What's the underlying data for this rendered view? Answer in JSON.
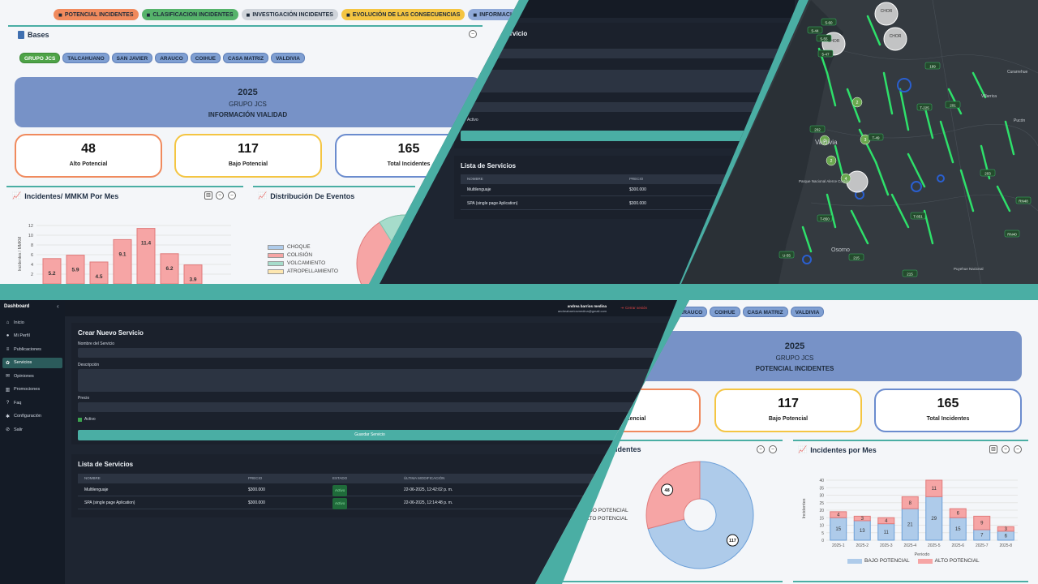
{
  "colors": {
    "teal": "#4aaea4",
    "vial_banner": "#7792c7",
    "alto": "#f6a5a5",
    "bajo": "#aecbea",
    "green_chip": "#4ea347"
  },
  "vialidad": {
    "tabs": [
      {
        "label": "POTENCIAL INCIDENTES",
        "icon": "truck-icon",
        "color": "#f08a5d"
      },
      {
        "label": "CLASIFICACION INCIDENTES",
        "icon": "pie-icon",
        "color": "#56b36b"
      },
      {
        "label": "INVESTIGACIÓN INCIDENTES",
        "icon": "detective-icon",
        "color": "#cfd4da"
      },
      {
        "label": "EVOLUCIÓN DE LAS CONSECUENCIAS",
        "icon": "table-icon",
        "color": "#f4c542"
      },
      {
        "label": "INFORMACIÓN VIALIDAD",
        "icon": "chart-line-icon",
        "color": "#8fa9d8"
      }
    ],
    "bases_title": "Bases",
    "chips": [
      "GRUPO JCS",
      "TALCAHUANO",
      "SAN JAVIER",
      "ARAUCO",
      "COIHUE",
      "CASA MATRIZ",
      "VALDIVIA"
    ],
    "year": "2025",
    "group": "GRUPO JCS",
    "subtitle": "INFORMACIÓN VIALIDAD",
    "kpis": [
      {
        "value": "48",
        "label": "Alto Potencial",
        "color": "#f08a5d"
      },
      {
        "value": "117",
        "label": "Bajo Potencial",
        "color": "#f4c542"
      },
      {
        "value": "165",
        "label": "Total Incidentes",
        "color": "#6b8cce"
      }
    ],
    "chart1_title": "Incidentes/ MMKM Por Mes",
    "chart1_ylabel": "Incidentes / MMKM",
    "chart2_title": "Distribución De Eventos",
    "legend": [
      {
        "label": "CHOQUE",
        "color": "#aecbea"
      },
      {
        "label": "COLISIÓN",
        "color": "#f6a5a5"
      },
      {
        "label": "VOLCAMIENTO",
        "color": "#a6dccb"
      },
      {
        "label": "ATROPELLAMIENTO",
        "color": "#fde7b0"
      }
    ]
  },
  "chart_data": [
    {
      "type": "bar",
      "title": "Incidentes/ MMKM Por Mes",
      "ylabel": "Incidentes / MMKM",
      "ylim": [
        0,
        12
      ],
      "yticks": [
        2,
        4,
        6,
        8,
        10,
        12
      ],
      "values": [
        5.2,
        5.9,
        4.5,
        9.1,
        11.4,
        6.2,
        3.9
      ]
    },
    {
      "type": "pie",
      "title": "Incidentes",
      "labels": [
        "BAJO POTENCIAL",
        "ALTO POTENCIAL"
      ],
      "values": [
        117,
        48
      ]
    },
    {
      "type": "bar",
      "title": "Incidentes por Mes",
      "xlabel": "Periodo",
      "ylabel": "Incidentes",
      "ylim": [
        0,
        40
      ],
      "yticks": [
        0,
        5,
        10,
        15,
        20,
        25,
        30,
        35,
        40
      ],
      "categories": [
        "2025-1",
        "2025-2",
        "2025-3",
        "2025-4",
        "2025-5",
        "2025-6",
        "2025-7",
        "2025-8"
      ],
      "series": [
        {
          "name": "BAJO POTENCIAL",
          "values": [
            15,
            13,
            11,
            21,
            29,
            15,
            7,
            6
          ]
        },
        {
          "name": "ALTO POTENCIAL",
          "values": [
            4,
            3,
            4,
            8,
            11,
            6,
            9,
            3
          ]
        }
      ]
    }
  ],
  "servicios_top": {
    "form_title": "o Servicio",
    "active_label": "Activo",
    "list_title": "Lista de Servicios",
    "headers": [
      "NOMBRE",
      "PRECIO"
    ],
    "rows": [
      {
        "name": "Multilenguaje",
        "price": "$300.000"
      },
      {
        "name": "SPA (single page Aplication)",
        "price": "$300.000"
      }
    ]
  },
  "map": {
    "clusters": [
      "CHOR",
      "CHOR",
      "CHOR"
    ],
    "roads": [
      "5-60",
      "5-44",
      "5-55",
      "5-47",
      "199",
      "T-225",
      "201",
      "202",
      "T-49",
      "203",
      "T-851",
      "215",
      "RN48",
      "RN40",
      "T-850",
      "U-55",
      "215"
    ],
    "places": [
      "Valdivia",
      "Osorno",
      "Parque Nacional Alerce Costero",
      "Puyehue Nacional",
      "Curarrehue",
      "Villarrica",
      "Pucón"
    ],
    "sample_counts": [
      "3",
      "2",
      "3",
      "4",
      "2"
    ]
  },
  "admin": {
    "brand": "Dashboard",
    "collapse_glyph": "‹",
    "user_name": "andrea barrios medina",
    "user_email": "andreabarriosmedina@gmail.com",
    "logout": "Cerrar sesión",
    "nav": [
      {
        "label": "Inicio",
        "icon": "home-icon",
        "glyph": "⌂"
      },
      {
        "label": "Mi Perfil",
        "icon": "user-icon",
        "glyph": "●"
      },
      {
        "label": "Publicaciones",
        "icon": "list-icon",
        "glyph": "≡"
      },
      {
        "label": "Servicios",
        "icon": "gear-icon",
        "glyph": "✿"
      },
      {
        "label": "Opiniones",
        "icon": "chat-icon",
        "glyph": "✉"
      },
      {
        "label": "Promociones",
        "icon": "chart-icon",
        "glyph": "▥"
      },
      {
        "label": "Faq",
        "icon": "question-icon",
        "glyph": "?"
      },
      {
        "label": "Configuración",
        "icon": "settings-icon",
        "glyph": "✱"
      },
      {
        "label": "Salir",
        "icon": "logout-icon",
        "glyph": "⊘"
      }
    ],
    "form_title": "Crear Nuevo Servicio",
    "f_name": "Nombre del Servicio",
    "f_desc": "Descripción",
    "f_price": "Precio",
    "active": "Activo",
    "save": "Guardar Servicio",
    "list_title": "Lista de Servicios",
    "headers": [
      "NOMBRE",
      "PRECIO",
      "ESTADO",
      "ÚLTIMA MODIFICACIÓN"
    ],
    "rows": [
      {
        "name": "Multilenguaje",
        "price": "$300.000",
        "status": "Activo",
        "modified": "22-06-2025, 12:42:02 p. m."
      },
      {
        "name": "SPA (single page Aplication)",
        "price": "$300.000",
        "status": "Activo",
        "modified": "22-06-2025, 12:14:48 p. m."
      }
    ]
  },
  "incidentes": {
    "chips": [
      "R",
      "ARAUCO",
      "COIHUE",
      "CASA MATRIZ",
      "VALDIVIA"
    ],
    "year": "2025",
    "group": "GRUPO JCS",
    "subtitle": "POTENCIAL INCIDENTES",
    "kpis": [
      {
        "value": "48",
        "label": "Alto Potencial"
      },
      {
        "value": "117",
        "label": "Bajo Potencial"
      },
      {
        "value": "165",
        "label": "Total Incidentes"
      }
    ],
    "donut_title": "Incidentes",
    "bar_title": "Incidentes por Mes",
    "xlabel": "Periodo",
    "ylabel": "Incidentes",
    "legend_bajo": "BAJO POTENCIAL",
    "legend_alto": "ALTO POTENCIAL"
  }
}
